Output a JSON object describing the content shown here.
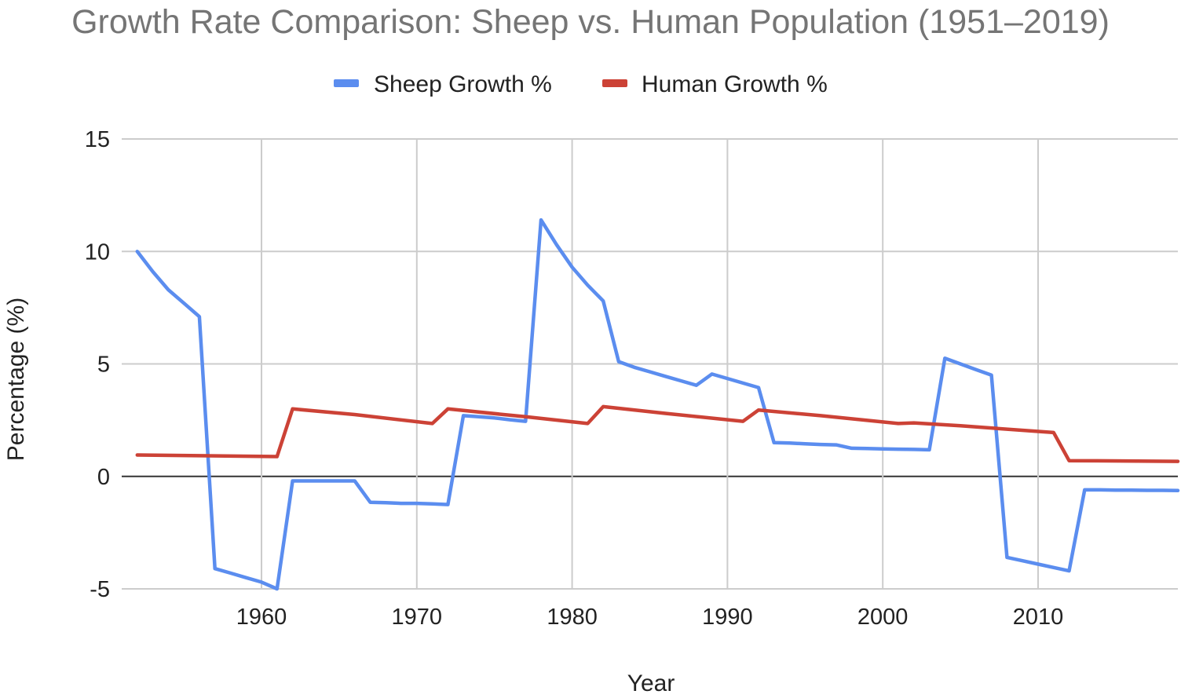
{
  "chart_data": {
    "type": "line",
    "title": "Growth Rate Comparison: Sheep vs. Human Population (1951–2019)",
    "xlabel": "Year",
    "ylabel": "Percentage (%)",
    "xlim": [
      1951,
      2019
    ],
    "ylim": [
      -5,
      15
    ],
    "x_ticks": [
      1960,
      1970,
      1980,
      1990,
      2000,
      2010
    ],
    "y_ticks": [
      -5,
      0,
      5,
      10,
      15
    ],
    "grid": true,
    "legend_position": "top",
    "series": [
      {
        "name": "Sheep Growth %",
        "color": "#5b8def",
        "points": [
          [
            1952,
            10.0
          ],
          [
            1953,
            9.1
          ],
          [
            1954,
            8.3
          ],
          [
            1955,
            7.7
          ],
          [
            1956,
            7.1
          ],
          [
            1957,
            -4.1
          ],
          [
            1958,
            -4.3
          ],
          [
            1959,
            -4.5
          ],
          [
            1960,
            -4.7
          ],
          [
            1961,
            -5.0
          ],
          [
            1962,
            -0.2
          ],
          [
            1963,
            -0.2
          ],
          [
            1964,
            -0.2
          ],
          [
            1965,
            -0.2
          ],
          [
            1966,
            -0.2
          ],
          [
            1967,
            -1.15
          ],
          [
            1968,
            -1.17
          ],
          [
            1969,
            -1.2
          ],
          [
            1970,
            -1.2
          ],
          [
            1971,
            -1.22
          ],
          [
            1972,
            -1.25
          ],
          [
            1973,
            2.7
          ],
          [
            1974,
            2.65
          ],
          [
            1975,
            2.6
          ],
          [
            1976,
            2.52
          ],
          [
            1977,
            2.45
          ],
          [
            1978,
            11.4
          ],
          [
            1979,
            10.3
          ],
          [
            1980,
            9.3
          ],
          [
            1981,
            8.5
          ],
          [
            1982,
            7.8
          ],
          [
            1983,
            5.1
          ],
          [
            1984,
            4.85
          ],
          [
            1985,
            4.65
          ],
          [
            1986,
            4.45
          ],
          [
            1987,
            4.25
          ],
          [
            1988,
            4.05
          ],
          [
            1989,
            4.55
          ],
          [
            1990,
            4.35
          ],
          [
            1991,
            4.15
          ],
          [
            1992,
            3.95
          ],
          [
            1993,
            1.5
          ],
          [
            1994,
            1.48
          ],
          [
            1995,
            1.45
          ],
          [
            1996,
            1.42
          ],
          [
            1997,
            1.4
          ],
          [
            1998,
            1.25
          ],
          [
            1999,
            1.24
          ],
          [
            2000,
            1.22
          ],
          [
            2001,
            1.21
          ],
          [
            2002,
            1.2
          ],
          [
            2003,
            1.18
          ],
          [
            2004,
            5.25
          ],
          [
            2005,
            5.0
          ],
          [
            2006,
            4.75
          ],
          [
            2007,
            4.5
          ],
          [
            2008,
            -3.6
          ],
          [
            2009,
            -3.75
          ],
          [
            2010,
            -3.9
          ],
          [
            2011,
            -4.05
          ],
          [
            2012,
            -4.2
          ],
          [
            2013,
            -0.6
          ],
          [
            2014,
            -0.6
          ],
          [
            2015,
            -0.61
          ],
          [
            2016,
            -0.61
          ],
          [
            2017,
            -0.62
          ],
          [
            2018,
            -0.62
          ],
          [
            2019,
            -0.63
          ]
        ]
      },
      {
        "name": "Human Growth %",
        "color": "#cc4236",
        "points": [
          [
            1952,
            0.95
          ],
          [
            1956,
            0.92
          ],
          [
            1961,
            0.88
          ],
          [
            1962,
            3.0
          ],
          [
            1966,
            2.75
          ],
          [
            1971,
            2.35
          ],
          [
            1972,
            3.0
          ],
          [
            1977,
            2.65
          ],
          [
            1981,
            2.35
          ],
          [
            1982,
            3.1
          ],
          [
            1986,
            2.8
          ],
          [
            1991,
            2.45
          ],
          [
            1992,
            2.95
          ],
          [
            1996,
            2.7
          ],
          [
            2001,
            2.35
          ],
          [
            2002,
            2.38
          ],
          [
            2005,
            2.25
          ],
          [
            2011,
            1.95
          ],
          [
            2012,
            0.7
          ],
          [
            2019,
            0.67
          ]
        ]
      }
    ]
  }
}
